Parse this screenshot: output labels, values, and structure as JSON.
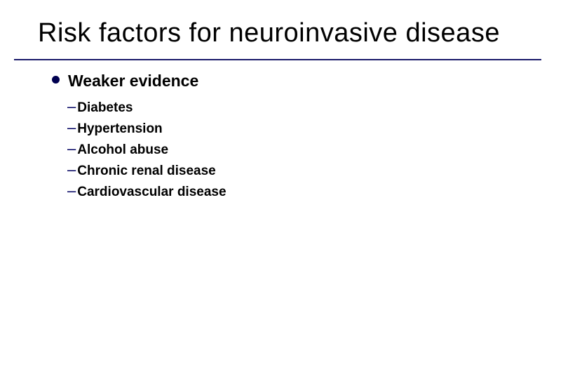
{
  "slide": {
    "title": "Risk factors for neuroinvasive disease",
    "title_fontsize": 38,
    "title_color": "#000000",
    "divider_color": "#1a1a6a",
    "background_color": "#ffffff",
    "bullet": {
      "text": "Weaker evidence",
      "dot_color": "#000050",
      "text_color": "#000000",
      "text_fontsize": 23,
      "text_weight": "bold",
      "items": [
        "Diabetes",
        "Hypertension",
        "Alcohol abuse",
        "Chronic renal disease",
        "Cardiovascular disease"
      ],
      "item_fontsize": 19,
      "item_weight": "bold",
      "item_color": "#000000",
      "dash_color": "#000060"
    }
  }
}
